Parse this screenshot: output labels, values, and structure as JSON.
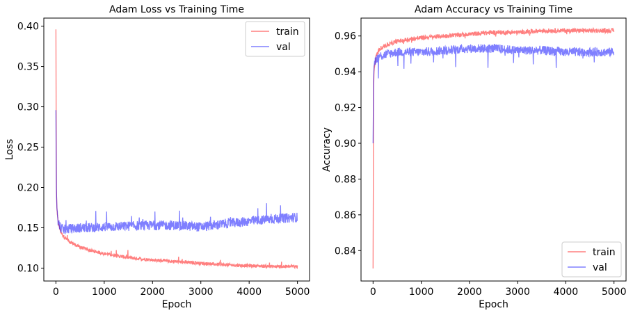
{
  "chart_data": [
    {
      "type": "line",
      "title": "Adam Loss vs Training Time",
      "xlabel": "Epoch",
      "ylabel": "Loss",
      "xlim": [
        -250,
        5250
      ],
      "ylim": [
        0.084,
        0.41
      ],
      "xticks": [
        0,
        1000,
        2000,
        3000,
        4000,
        5000
      ],
      "yticks": [
        0.1,
        0.15,
        0.2,
        0.25,
        0.3,
        0.35,
        0.4
      ],
      "ytick_decimals": 2,
      "legend_position": "upper right",
      "grid": false,
      "series": [
        {
          "name": "train",
          "color": "#ff0000",
          "x": [
            0,
            10,
            20,
            40,
            60,
            100,
            150,
            200,
            300,
            400,
            500,
            700,
            1000,
            1500,
            2000,
            2500,
            3000,
            3500,
            4000,
            4500,
            5000
          ],
          "y": [
            0.396,
            0.2,
            0.175,
            0.16,
            0.153,
            0.145,
            0.14,
            0.137,
            0.132,
            0.129,
            0.126,
            0.122,
            0.118,
            0.113,
            0.11,
            0.108,
            0.106,
            0.104,
            0.103,
            0.102,
            0.102
          ]
        },
        {
          "name": "val",
          "color": "#0000ff",
          "x": [
            0,
            10,
            20,
            40,
            60,
            100,
            150,
            200,
            300,
            400,
            500,
            700,
            1000,
            1500,
            2000,
            2500,
            3000,
            3500,
            4000,
            4500,
            5000
          ],
          "y": [
            0.296,
            0.2,
            0.175,
            0.16,
            0.155,
            0.15,
            0.148,
            0.148,
            0.149,
            0.149,
            0.15,
            0.15,
            0.151,
            0.152,
            0.153,
            0.153,
            0.151,
            0.155,
            0.158,
            0.161,
            0.163
          ]
        }
      ]
    },
    {
      "type": "line",
      "title": "Adam Accuracy vs Training Time",
      "xlabel": "Epoch",
      "ylabel": "Accuracy",
      "xlim": [
        -250,
        5250
      ],
      "ylim": [
        0.823,
        0.97
      ],
      "xticks": [
        0,
        1000,
        2000,
        3000,
        4000,
        5000
      ],
      "yticks": [
        0.84,
        0.86,
        0.88,
        0.9,
        0.92,
        0.94,
        0.96
      ],
      "ytick_decimals": 2,
      "legend_position": "lower right",
      "grid": false,
      "series": [
        {
          "name": "train",
          "color": "#ff0000",
          "x": [
            0,
            10,
            20,
            40,
            60,
            100,
            150,
            200,
            300,
            500,
            700,
            1000,
            1500,
            2000,
            2500,
            3000,
            3500,
            4000,
            4500,
            5000
          ],
          "y": [
            0.83,
            0.93,
            0.94,
            0.945,
            0.948,
            0.951,
            0.953,
            0.954,
            0.955,
            0.957,
            0.958,
            0.959,
            0.96,
            0.961,
            0.962,
            0.962,
            0.963,
            0.963,
            0.963,
            0.963
          ]
        },
        {
          "name": "val",
          "color": "#0000ff",
          "x": [
            0,
            10,
            20,
            40,
            60,
            100,
            150,
            200,
            300,
            500,
            700,
            1000,
            1500,
            2000,
            2500,
            3000,
            3500,
            4000,
            4500,
            5000
          ],
          "y": [
            0.9,
            0.935,
            0.943,
            0.946,
            0.947,
            0.948,
            0.949,
            0.949,
            0.95,
            0.951,
            0.951,
            0.951,
            0.952,
            0.953,
            0.953,
            0.952,
            0.952,
            0.951,
            0.951,
            0.951
          ]
        }
      ]
    }
  ]
}
